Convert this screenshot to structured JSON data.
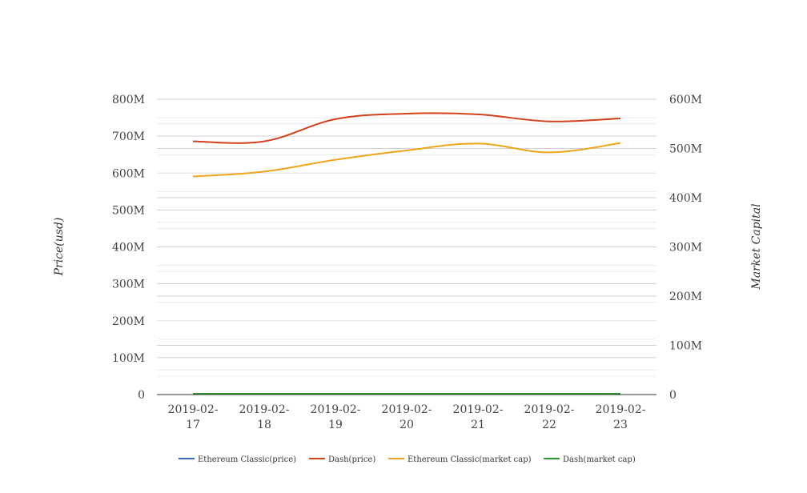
{
  "chart_data": {
    "type": "line",
    "categories": [
      "2019-02-17",
      "2019-02-18",
      "2019-02-19",
      "2019-02-20",
      "2019-02-21",
      "2019-02-22",
      "2019-02-23"
    ],
    "category_label_lines": [
      [
        "2019-02-",
        "17"
      ],
      [
        "2019-02-",
        "18"
      ],
      [
        "2019-02-",
        "19"
      ],
      [
        "2019-02-",
        "20"
      ],
      [
        "2019-02-",
        "21"
      ],
      [
        "2019-02-",
        "22"
      ],
      [
        "2019-02-",
        "23"
      ]
    ],
    "ylabel": "Price(usd)",
    "y2label": "Market Capital",
    "ylim": [
      0,
      800000000
    ],
    "y2lim": [
      0,
      600000000
    ],
    "yticks": [
      "0",
      "100M",
      "200M",
      "300M",
      "400M",
      "500M",
      "600M",
      "700M",
      "800M"
    ],
    "y2ticks": [
      "0",
      "100M",
      "200M",
      "300M",
      "400M",
      "500M",
      "600M"
    ],
    "grid": true,
    "legend_position": "bottom",
    "series": [
      {
        "name": "Ethereum Classic(price)",
        "axis": "left",
        "color": "#3b6bb5",
        "values": [
          4.4,
          4.6,
          4.9,
          4.9,
          5.0,
          4.7,
          4.9
        ]
      },
      {
        "name": "Dash(price)",
        "axis": "left",
        "color": "#d2401c",
        "values": [
          686000000,
          686000000,
          746000000,
          761000000,
          759000000,
          740000000,
          748000000
        ]
      },
      {
        "name": "Ethereum Classic(market cap)",
        "axis": "right",
        "color": "#f0a41c",
        "values": [
          443000000,
          453000000,
          477000000,
          496000000,
          510000000,
          492000000,
          511000000
        ]
      },
      {
        "name": "Dash(market cap)",
        "axis": "right",
        "color": "#2a9b2a",
        "values": [
          80,
          85,
          90,
          92,
          93,
          91,
          93
        ]
      }
    ]
  }
}
